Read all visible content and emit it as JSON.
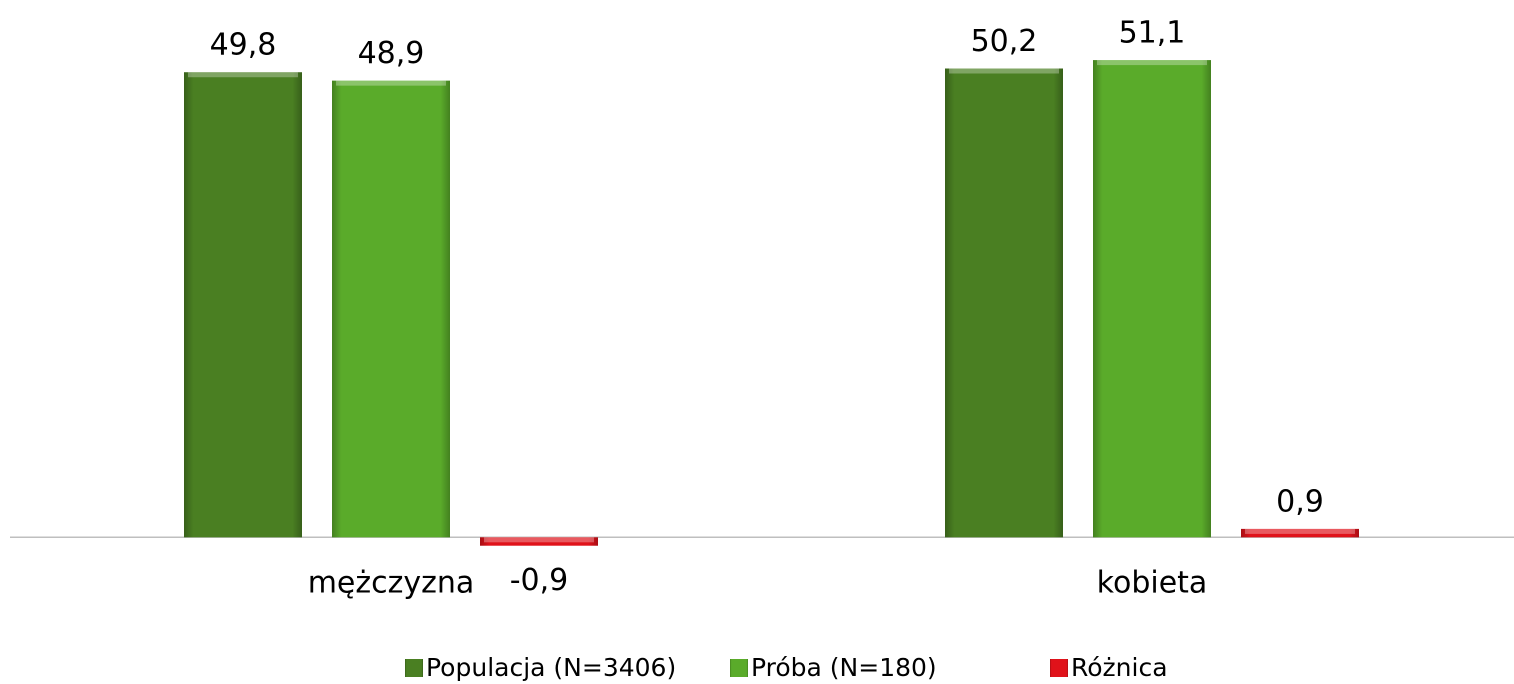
{
  "chart_data": {
    "type": "bar",
    "categories": [
      "mężczyzna",
      "kobieta"
    ],
    "series": [
      {
        "name": "Populacja (N=3406)",
        "color": "#4a7f22",
        "values": [
          49.8,
          50.2
        ],
        "value_labels": [
          "49,8",
          "50,2"
        ]
      },
      {
        "name": "Próba (N=180)",
        "color": "#5aab2a",
        "values": [
          48.9,
          51.1
        ],
        "value_labels": [
          "48,9",
          "51,1"
        ]
      },
      {
        "name": "Różnica",
        "color": "#e0121a",
        "values": [
          -0.9,
          0.9
        ],
        "value_labels": [
          "-0,9",
          "0,9"
        ]
      }
    ],
    "ylim": [
      -5,
      57
    ],
    "legend": "bottom"
  }
}
